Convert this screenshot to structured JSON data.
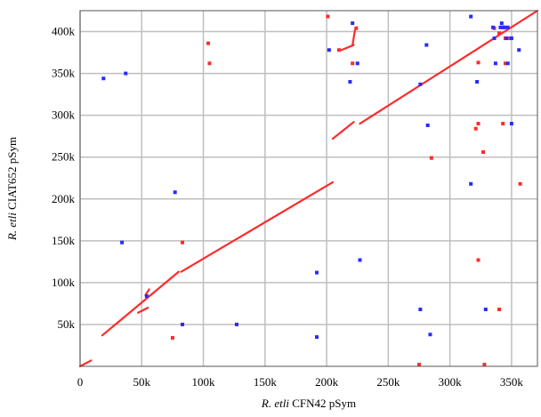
{
  "chart_data": {
    "type": "scatter",
    "title": "",
    "xlabel_italic": "R. etli",
    "xlabel_rest": " CFN42 pSym",
    "ylabel_italic": "R. etli",
    "ylabel_rest": " CIAT652 pSym",
    "xlim": [
      0,
      371000
    ],
    "ylim": [
      0,
      425000
    ],
    "grid": true,
    "x_ticks": [
      {
        "value": 0,
        "label": "0"
      },
      {
        "value": 50000,
        "label": "50k"
      },
      {
        "value": 100000,
        "label": "100k"
      },
      {
        "value": 150000,
        "label": "150k"
      },
      {
        "value": 200000,
        "label": "200k"
      },
      {
        "value": 250000,
        "label": "250k"
      },
      {
        "value": 300000,
        "label": "300k"
      },
      {
        "value": 350000,
        "label": "350k"
      }
    ],
    "y_ticks": [
      {
        "value": 50000,
        "label": "50k"
      },
      {
        "value": 100000,
        "label": "100k"
      },
      {
        "value": 150000,
        "label": "150k"
      },
      {
        "value": 200000,
        "label": "200k"
      },
      {
        "value": 250000,
        "label": "250k"
      },
      {
        "value": 300000,
        "label": "300k"
      },
      {
        "value": 350000,
        "label": "350k"
      },
      {
        "value": 400000,
        "label": "400k"
      }
    ],
    "colors": {
      "forward": "#ff2a2a",
      "reverse": "#2a2aff",
      "grid": "#bfbfbf",
      "frame": "#555555"
    },
    "segments": [
      {
        "x": [
          0,
          9000
        ],
        "y": [
          0,
          7000
        ]
      },
      {
        "x": [
          18000,
          80000
        ],
        "y": [
          37000,
          113000
        ]
      },
      {
        "x": [
          82000,
          205000
        ],
        "y": [
          113000,
          220000
        ]
      },
      {
        "x": [
          205000,
          222000
        ],
        "y": [
          272000,
          292000
        ]
      },
      {
        "x": [
          227000,
          371000
        ],
        "y": [
          290000,
          425000
        ]
      },
      {
        "x": [
          212000,
          222000
        ],
        "y": [
          378000,
          384000
        ]
      },
      {
        "x": [
          221000,
          223000
        ],
        "y": [
          384000,
          402000
        ]
      },
      {
        "x": [
          53000,
          56000
        ],
        "y": [
          85000,
          92000
        ]
      },
      {
        "x": [
          47000,
          55000
        ],
        "y": [
          64000,
          70000
        ]
      }
    ],
    "series": [
      {
        "name": "",
        "color_key": "forward",
        "points": [
          [
            75000,
            34000
          ],
          [
            83000,
            148000
          ],
          [
            104000,
            386000
          ],
          [
            105000,
            362000
          ],
          [
            201000,
            418000
          ],
          [
            210000,
            378000
          ],
          [
            221000,
            362000
          ],
          [
            224000,
            404000
          ],
          [
            275000,
            2000
          ],
          [
            285000,
            249000
          ],
          [
            321000,
            284000
          ],
          [
            323000,
            290000
          ],
          [
            323000,
            127000
          ],
          [
            323000,
            363000
          ],
          [
            327000,
            256000
          ],
          [
            328000,
            2000
          ],
          [
            340000,
            68000
          ],
          [
            343000,
            290000
          ],
          [
            345000,
            405000
          ],
          [
            345000,
            392000
          ],
          [
            345000,
            362000
          ],
          [
            349000,
            392000
          ],
          [
            357000,
            218000
          ],
          [
            336000,
            404000
          ],
          [
            340000,
            398000
          ]
        ]
      },
      {
        "name": "",
        "color_key": "reverse",
        "points": [
          [
            19000,
            344000
          ],
          [
            37000,
            350000
          ],
          [
            34000,
            148000
          ],
          [
            54000,
            84000
          ],
          [
            77000,
            208000
          ],
          [
            83000,
            50000
          ],
          [
            127000,
            50000
          ],
          [
            192000,
            112000
          ],
          [
            192000,
            35000
          ],
          [
            202000,
            378000
          ],
          [
            219000,
            340000
          ],
          [
            221000,
            410000
          ],
          [
            225000,
            362000
          ],
          [
            227000,
            127000
          ],
          [
            276000,
            68000
          ],
          [
            276000,
            337000
          ],
          [
            281000,
            384000
          ],
          [
            282000,
            288000
          ],
          [
            284000,
            38000
          ],
          [
            317000,
            218000
          ],
          [
            317000,
            418000
          ],
          [
            322000,
            340000
          ],
          [
            329000,
            68000
          ],
          [
            335000,
            405000
          ],
          [
            336000,
            392000
          ],
          [
            337000,
            362000
          ],
          [
            341000,
            405000
          ],
          [
            342000,
            410000
          ],
          [
            343000,
            405000
          ],
          [
            346000,
            392000
          ],
          [
            347000,
            362000
          ],
          [
            347000,
            405000
          ],
          [
            350000,
            290000
          ],
          [
            356000,
            378000
          ],
          [
            350000,
            392000
          ],
          [
            344000,
            405000
          ]
        ]
      }
    ]
  }
}
